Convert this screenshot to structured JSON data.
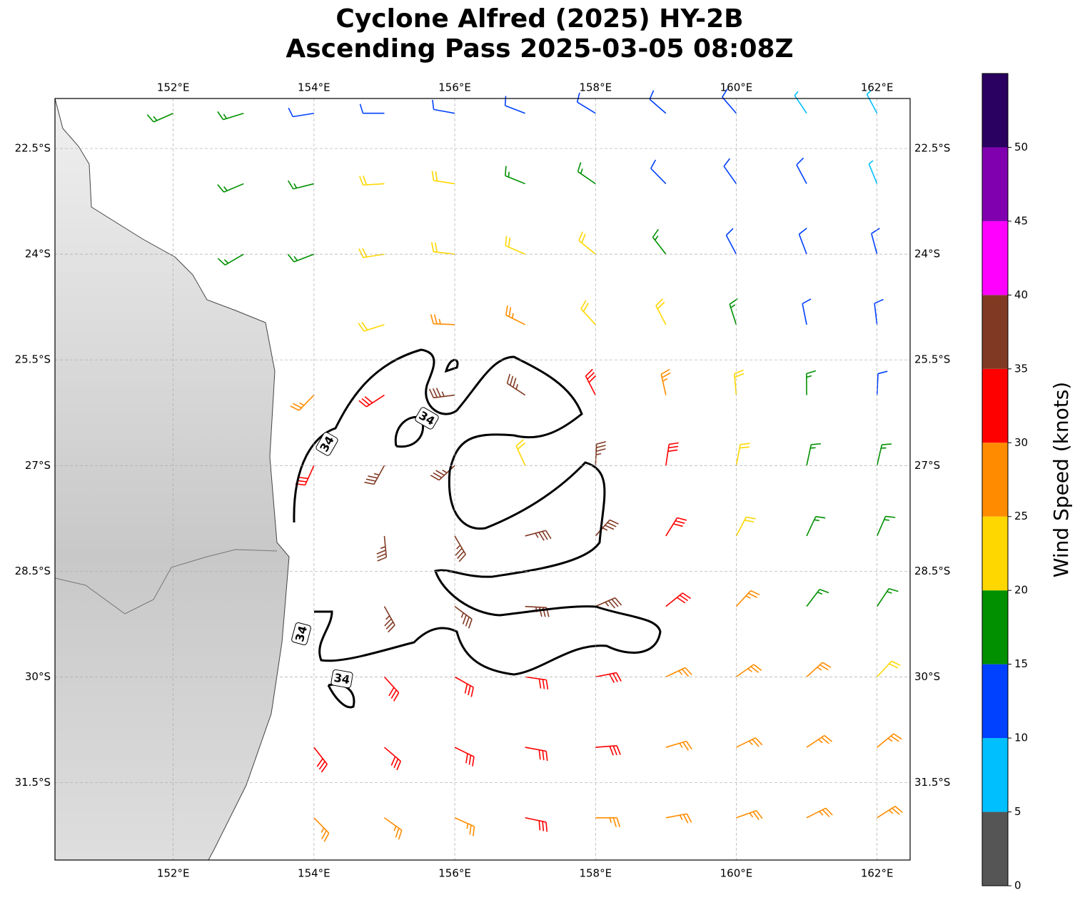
{
  "chart_data": {
    "type": "wind_barb_map",
    "title": "Cyclone Alfred (2025) HY-2B",
    "subtitle": "Ascending Pass 2025-03-05 08:08Z",
    "x": [
      151,
      152,
      153,
      154,
      155,
      156,
      157,
      158,
      159,
      160,
      161,
      162
    ],
    "y": [
      -22,
      -23,
      -24,
      -25,
      -26,
      -27,
      -28,
      -29,
      -30,
      -31,
      -32
    ],
    "values": [
      [
        null,
        16,
        16,
        14,
        13,
        13,
        13,
        13,
        12,
        12,
        8,
        7
      ],
      [
        null,
        null,
        17,
        18,
        22,
        20,
        18,
        16,
        13,
        12,
        11,
        8
      ],
      [
        null,
        null,
        17,
        18,
        22,
        24,
        23,
        20,
        18,
        14,
        12,
        11
      ],
      [
        null,
        null,
        null,
        null,
        22,
        27,
        27,
        24,
        21,
        18,
        14,
        12
      ],
      [
        null,
        null,
        null,
        27,
        33,
        37,
        37,
        32,
        25,
        20,
        17,
        14
      ],
      [
        null,
        null,
        null,
        31,
        37,
        36,
        22,
        36,
        30,
        23,
        18,
        15
      ],
      [
        null,
        null,
        null,
        null,
        37,
        37,
        38,
        37,
        32,
        24,
        19,
        17
      ],
      [
        null,
        null,
        null,
        null,
        36,
        37,
        37,
        37,
        33,
        26,
        19,
        18
      ],
      [
        null,
        null,
        null,
        null,
        33,
        34,
        33,
        32,
        29,
        27,
        25,
        24
      ],
      [
        null,
        null,
        null,
        32,
        31,
        32,
        32,
        31,
        29,
        28,
        27,
        27
      ],
      [
        null,
        null,
        null,
        27,
        28,
        29,
        30,
        29,
        28,
        27,
        26,
        26
      ]
    ],
    "xlim": [
      150.32,
      162.47
    ],
    "ylim": [
      -32.6,
      -21.79
    ],
    "xticks": [
      {
        "value": 152,
        "label": "152°E"
      },
      {
        "value": 154,
        "label": "154°E"
      },
      {
        "value": 156,
        "label": "156°E"
      },
      {
        "value": 158,
        "label": "158°E"
      },
      {
        "value": 160,
        "label": "160°E"
      },
      {
        "value": 162,
        "label": "162°E"
      }
    ],
    "yticks": [
      {
        "value": -22.5,
        "label": "22.5°S"
      },
      {
        "value": -24,
        "label": "24°S"
      },
      {
        "value": -25.5,
        "label": "25.5°S"
      },
      {
        "value": -27,
        "label": "27°S"
      },
      {
        "value": -28.5,
        "label": "28.5°S"
      },
      {
        "value": -30,
        "label": "30°S"
      },
      {
        "value": -31.5,
        "label": "31.5°S"
      }
    ],
    "grid": true,
    "contour_level": 34,
    "colorbar": {
      "label": "Wind Speed (knots)",
      "bounds": [
        0,
        5,
        10,
        15,
        20,
        25,
        30,
        35,
        40,
        45,
        50,
        55
      ],
      "colors": [
        "#555555",
        "#00bfff",
        "#0040ff",
        "#009000",
        "#ffd700",
        "#ff8c00",
        "#ff0000",
        "#803a24",
        "#ff00ff",
        "#8000b0",
        "#2a0060"
      ],
      "ticks": [
        0,
        5,
        10,
        15,
        20,
        25,
        30,
        35,
        40,
        45,
        50
      ]
    }
  }
}
